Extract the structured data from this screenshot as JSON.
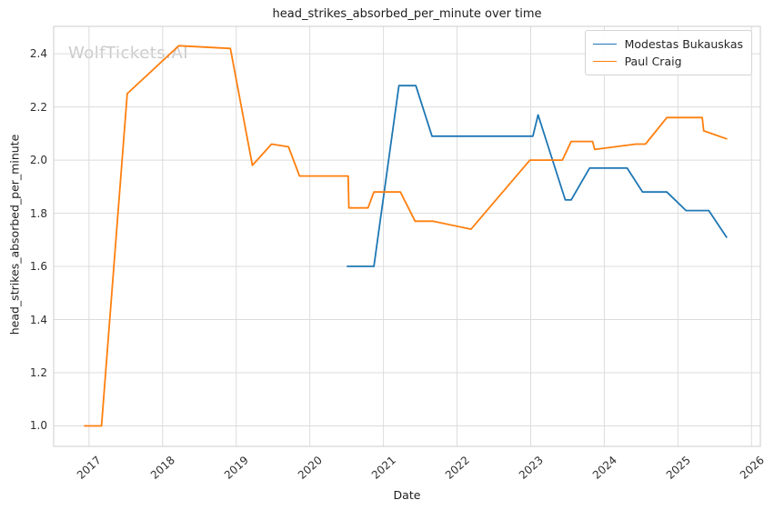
{
  "chart_data": {
    "type": "line",
    "title": "head_strikes_absorbed_per_minute over time",
    "xlabel": "Date",
    "ylabel": "head_strikes_absorbed_per_minute",
    "watermark": "WolfTickets.AI",
    "xlim": [
      2016.52,
      2026.12
    ],
    "ylim": [
      0.923,
      2.503
    ],
    "x_ticks": [
      2017,
      2018,
      2019,
      2020,
      2021,
      2022,
      2023,
      2024,
      2025,
      2026
    ],
    "y_ticks": [
      1.0,
      1.2,
      1.4,
      1.6,
      1.8,
      2.0,
      2.2,
      2.4
    ],
    "grid": true,
    "legend_position": "upper-right",
    "colors": {
      "grid": "#dcdcdc",
      "spine": "#cdcdcd",
      "tick_text": "#2e2e2e",
      "watermark": "#cbcbcb"
    },
    "series": [
      {
        "name": "Modestas Bukauskas",
        "color": "#1f77b4",
        "points": [
          [
            2020.51,
            1.6
          ],
          [
            2020.87,
            1.6
          ],
          [
            2021.21,
            2.28
          ],
          [
            2021.44,
            2.28
          ],
          [
            2021.66,
            2.09
          ],
          [
            2023.03,
            2.09
          ],
          [
            2023.1,
            2.17
          ],
          [
            2023.47,
            1.85
          ],
          [
            2023.55,
            1.85
          ],
          [
            2023.8,
            1.97
          ],
          [
            2024.31,
            1.97
          ],
          [
            2024.52,
            1.88
          ],
          [
            2024.85,
            1.88
          ],
          [
            2025.11,
            1.81
          ],
          [
            2025.42,
            1.81
          ],
          [
            2025.66,
            1.71
          ]
        ]
      },
      {
        "name": "Paul Craig",
        "color": "#ff7f0e",
        "points": [
          [
            2016.94,
            1.0
          ],
          [
            2017.17,
            1.0
          ],
          [
            2017.52,
            2.25
          ],
          [
            2018.22,
            2.43
          ],
          [
            2018.92,
            2.42
          ],
          [
            2019.22,
            1.98
          ],
          [
            2019.48,
            2.06
          ],
          [
            2019.71,
            2.05
          ],
          [
            2019.86,
            1.94
          ],
          [
            2020.52,
            1.94
          ],
          [
            2020.53,
            1.82
          ],
          [
            2020.79,
            1.82
          ],
          [
            2020.87,
            1.88
          ],
          [
            2021.23,
            1.88
          ],
          [
            2021.43,
            1.77
          ],
          [
            2021.67,
            1.77
          ],
          [
            2022.19,
            1.74
          ],
          [
            2022.99,
            2.0
          ],
          [
            2023.43,
            2.0
          ],
          [
            2023.55,
            2.07
          ],
          [
            2023.84,
            2.07
          ],
          [
            2023.87,
            2.04
          ],
          [
            2024.43,
            2.06
          ],
          [
            2024.56,
            2.06
          ],
          [
            2024.85,
            2.16
          ],
          [
            2025.33,
            2.16
          ],
          [
            2025.35,
            2.11
          ],
          [
            2025.66,
            2.08
          ]
        ]
      }
    ]
  }
}
